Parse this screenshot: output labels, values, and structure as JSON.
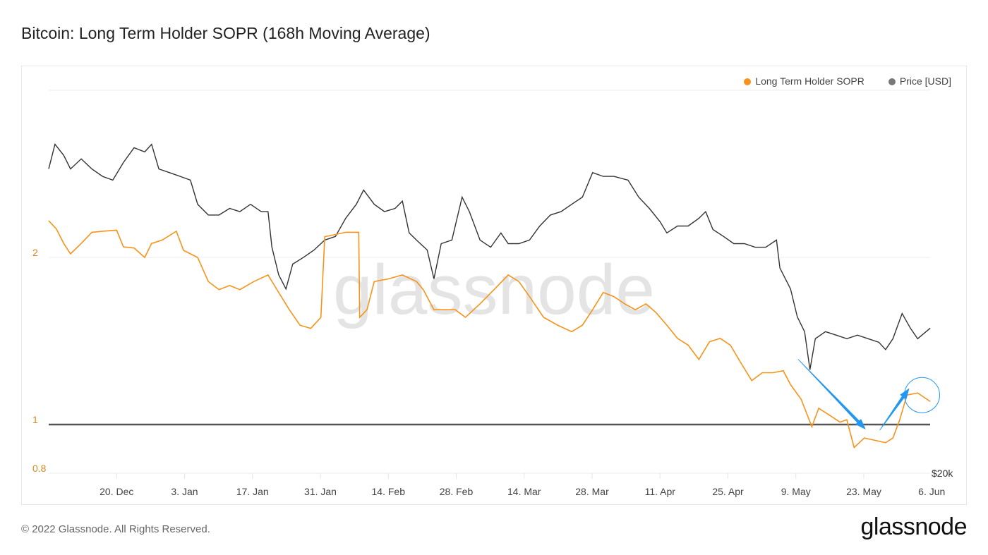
{
  "chart_data": {
    "type": "line",
    "title": "Bitcoin: Long Term Holder SOPR (168h Moving Average)",
    "x_unit": "days since 6 Dec 2021",
    "x_ticks": [
      {
        "day": 14,
        "label": "20. Dec"
      },
      {
        "day": 28,
        "label": "3. Jan"
      },
      {
        "day": 42,
        "label": "17. Jan"
      },
      {
        "day": 56,
        "label": "31. Jan"
      },
      {
        "day": 70,
        "label": "14. Feb"
      },
      {
        "day": 84,
        "label": "28. Feb"
      },
      {
        "day": 98,
        "label": "14. Mar"
      },
      {
        "day": 112,
        "label": "28. Mar"
      },
      {
        "day": 126,
        "label": "11. Apr"
      },
      {
        "day": 140,
        "label": "25. Apr"
      },
      {
        "day": 154,
        "label": "9. May"
      },
      {
        "day": 168,
        "label": "23. May"
      },
      {
        "day": 182,
        "label": "6. Jun"
      }
    ],
    "y_left": {
      "scale": "log",
      "ticks": [
        {
          "value": 0.8,
          "label": "0.8"
        },
        {
          "value": 1,
          "label": "1"
        },
        {
          "value": 2,
          "label": "2"
        }
      ]
    },
    "y_right": {
      "scale": "log",
      "ticks": [
        {
          "value": 20,
          "label": "$20k"
        }
      ],
      "unit": "USD thousands"
    },
    "reference_line": {
      "value": 1,
      "color": "#555555"
    },
    "legend": {
      "placement": "top-right"
    },
    "series": [
      {
        "name": "Long Term Holder SOPR",
        "axis": "left",
        "color": "#f7931a",
        "x": [
          0,
          1.6,
          3.1,
          4.5,
          6.7,
          8.9,
          11.1,
          14.0,
          15.4,
          17.6,
          19.8,
          21.2,
          23.4,
          26.3,
          27.8,
          30.7,
          32.9,
          35.1,
          37.3,
          39.4,
          42.3,
          45.2,
          47.4,
          49.6,
          51.8,
          54.0,
          56.1,
          56.9,
          59.1,
          61.2,
          63.9,
          64.1,
          65.6,
          67.1,
          70.0,
          72.9,
          75.8,
          77.2,
          79.4,
          81.6,
          83.8,
          85.9,
          88.9,
          91.8,
          94.7,
          96.9,
          99.1,
          102.0,
          104.9,
          107.8,
          110.0,
          112.1,
          114.3,
          116.5,
          118.7,
          120.9,
          123.1,
          125.2,
          127.4,
          129.6,
          131.8,
          134.0,
          136.2,
          138.4,
          140.5,
          142.7,
          144.9,
          147.1,
          149.3,
          151.4,
          152.9,
          155.1,
          157.3,
          158.7,
          160.9,
          163.1,
          164.5,
          166.0,
          168.1,
          170.3,
          172.5,
          174.0,
          175.4,
          176.9,
          179.1,
          181.7
        ],
        "values": [
          2.33,
          2.25,
          2.12,
          2.03,
          2.12,
          2.22,
          2.23,
          2.24,
          2.09,
          2.08,
          2.0,
          2.12,
          2.15,
          2.23,
          2.06,
          2.0,
          1.81,
          1.75,
          1.78,
          1.75,
          1.81,
          1.86,
          1.73,
          1.61,
          1.51,
          1.49,
          1.56,
          2.18,
          2.2,
          2.22,
          2.22,
          1.56,
          1.61,
          1.81,
          1.83,
          1.86,
          1.81,
          1.75,
          1.61,
          1.61,
          1.61,
          1.56,
          1.65,
          1.75,
          1.86,
          1.81,
          1.7,
          1.56,
          1.51,
          1.47,
          1.51,
          1.61,
          1.73,
          1.7,
          1.65,
          1.61,
          1.65,
          1.59,
          1.51,
          1.43,
          1.39,
          1.31,
          1.41,
          1.43,
          1.39,
          1.29,
          1.2,
          1.24,
          1.24,
          1.25,
          1.18,
          1.11,
          0.99,
          1.07,
          1.04,
          1.01,
          1.02,
          0.9,
          0.94,
          0.93,
          0.92,
          0.94,
          1.02,
          1.13,
          1.14,
          1.1
        ]
      },
      {
        "name": "Price [USD]",
        "axis": "right",
        "color": "#333333",
        "x": [
          0,
          1.3,
          3.1,
          4.5,
          6.7,
          8.9,
          11.1,
          13.2,
          15.4,
          17.6,
          19.8,
          21.2,
          22.7,
          24.9,
          27.1,
          29.2,
          30.7,
          32.9,
          35.1,
          37.3,
          39.4,
          41.6,
          43.8,
          45.2,
          46.0,
          47.4,
          48.9,
          50.3,
          52.5,
          54.7,
          56.9,
          59.1,
          61.2,
          63.4,
          64.9,
          67.1,
          69.2,
          71.4,
          72.9,
          74.3,
          75.8,
          78.0,
          79.4,
          80.9,
          83.1,
          85.2,
          86.7,
          88.9,
          91.1,
          93.2,
          94.7,
          96.9,
          99.1,
          101.2,
          103.4,
          105.6,
          107.8,
          110.0,
          112.1,
          114.3,
          116.5,
          119.4,
          121.6,
          123.8,
          126.0,
          127.4,
          129.6,
          131.8,
          134.0,
          135.4,
          136.9,
          139.1,
          141.2,
          143.4,
          145.6,
          147.8,
          150.0,
          150.7,
          152.9,
          154.3,
          155.8,
          156.9,
          158.0,
          160.1,
          162.3,
          164.5,
          166.7,
          168.9,
          171.1,
          172.5,
          174.0,
          175.9,
          177.6,
          179.1,
          181.7
        ],
        "values": [
          47.8,
          51.3,
          49.7,
          47.8,
          49.2,
          47.8,
          46.8,
          46.3,
          48.7,
          50.8,
          50.2,
          51.3,
          47.8,
          47.3,
          46.8,
          46.3,
          43.2,
          41.9,
          41.9,
          42.7,
          42.3,
          43.2,
          42.3,
          42.3,
          38.2,
          35.3,
          33.9,
          36.4,
          37.1,
          37.9,
          39.0,
          39.4,
          41.5,
          43.2,
          45.0,
          43.2,
          42.3,
          42.7,
          43.6,
          39.8,
          39.0,
          37.9,
          34.9,
          38.6,
          39.0,
          44.1,
          42.3,
          39.0,
          38.2,
          39.8,
          38.6,
          38.6,
          39.0,
          40.6,
          41.9,
          42.3,
          43.2,
          44.1,
          47.3,
          46.8,
          46.8,
          46.3,
          44.1,
          42.7,
          41.1,
          39.8,
          40.6,
          40.6,
          41.5,
          42.3,
          40.2,
          39.4,
          38.6,
          38.6,
          38.2,
          38.2,
          39.0,
          36.0,
          33.9,
          31.3,
          30.0,
          26.9,
          29.4,
          30.0,
          29.7,
          29.4,
          29.7,
          29.4,
          29.1,
          28.5,
          29.4,
          31.6,
          30.3,
          29.4,
          30.3
        ]
      }
    ],
    "annotations": [
      {
        "type": "arrow",
        "from": {
          "day": 154.5,
          "value": 1.31
        },
        "to": {
          "day": 168.3,
          "value": 0.98
        },
        "color": "#2196f3"
      },
      {
        "type": "arrow",
        "from": {
          "day": 171.3,
          "value": 0.975
        },
        "to": {
          "day": 177.3,
          "value": 1.16
        },
        "color": "#2196f3"
      },
      {
        "type": "circle",
        "center": {
          "day": 180,
          "value": 1.13
        },
        "color": "#2196f3"
      }
    ]
  },
  "watermark": "glassnode",
  "footer": {
    "copyright": "© 2022 Glassnode. All Rights Reserved.",
    "logo": "glassnode"
  }
}
